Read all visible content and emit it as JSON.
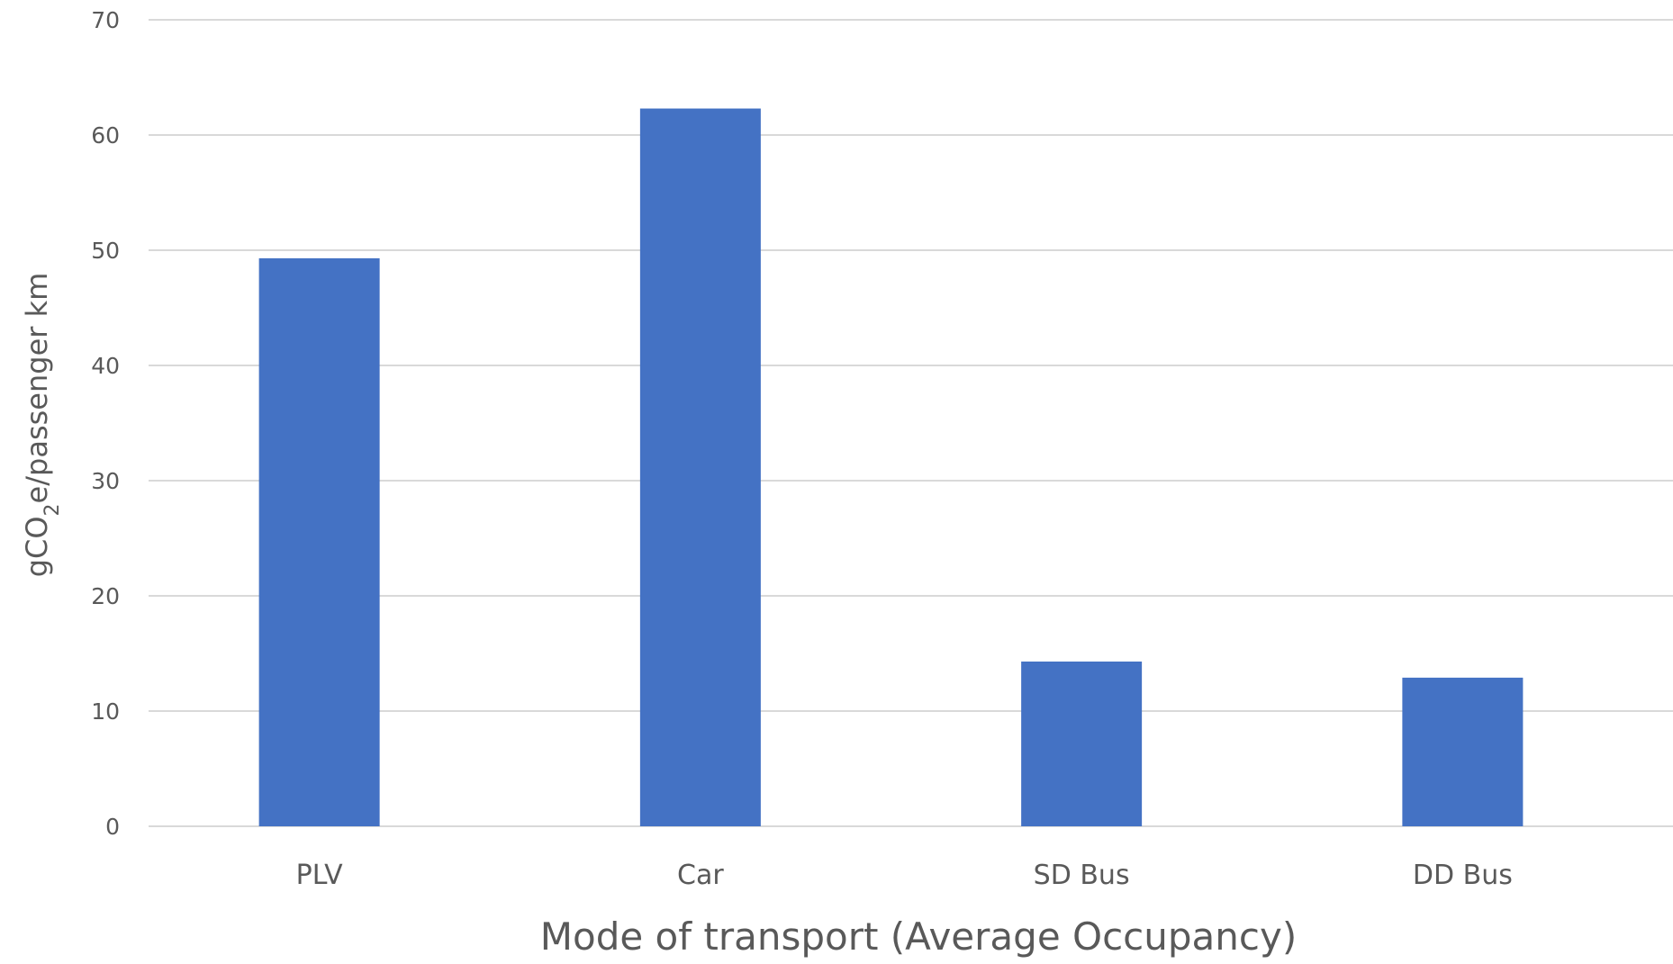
{
  "chart_data": {
    "type": "bar",
    "title": "",
    "categories": [
      "PLV",
      "Car",
      "SD Bus",
      "DD Bus"
    ],
    "values": [
      49.3,
      62.3,
      14.3,
      12.9
    ],
    "xlabel": "Mode of transport (Average Occupancy)",
    "ylabel": {
      "prefix": "gCO",
      "subscript": "2",
      "suffix": "e/passenger km"
    },
    "ylim": [
      0,
      70
    ],
    "yticks": [
      0,
      10,
      20,
      30,
      40,
      50,
      60,
      70
    ],
    "grid": true,
    "legend": "none",
    "colors": {
      "bar": "#4472C4",
      "grid": "#D9D9D9",
      "text": "#595959"
    }
  }
}
